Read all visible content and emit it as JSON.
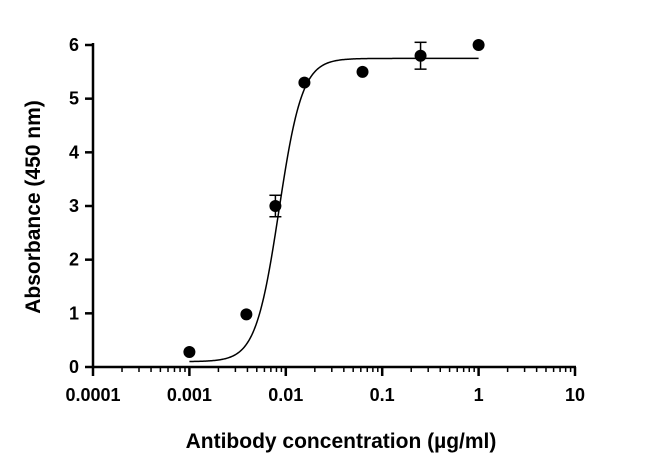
{
  "chart_data": {
    "type": "scatter",
    "title": "",
    "xlabel": "Antibody concentration (µg/ml)",
    "ylabel": "Absorbance (450 nm)",
    "x_scale": "log",
    "xlim": [
      0.0001,
      10
    ],
    "ylim": [
      0,
      6
    ],
    "x_ticks": [
      0.0001,
      0.001,
      0.01,
      0.1,
      1,
      10
    ],
    "x_tick_labels": [
      "0.0001",
      "0.001",
      "0.01",
      "0.1",
      "1",
      "10"
    ],
    "y_ticks": [
      0,
      1,
      2,
      3,
      4,
      5,
      6
    ],
    "y_tick_labels": [
      "0",
      "1",
      "2",
      "3",
      "4",
      "5",
      "6"
    ],
    "grid": false,
    "legend": "none",
    "series": [
      {
        "points": [
          {
            "x": 0.001,
            "y": 0.28
          },
          {
            "x": 0.0039,
            "y": 0.98
          },
          {
            "x": 0.0078,
            "y": 3.0,
            "err": 0.2
          },
          {
            "x": 0.0156,
            "y": 5.3
          },
          {
            "x": 0.0625,
            "y": 5.5
          },
          {
            "x": 0.25,
            "y": 5.8,
            "err": 0.25
          },
          {
            "x": 1,
            "y": 6.0
          }
        ]
      }
    ],
    "fit": {
      "model": "4PL",
      "bottom": 0.1,
      "top": 5.75,
      "ec50": 0.0085,
      "hill": 3.6,
      "x_range": [
        0.001,
        1
      ]
    },
    "colors": {
      "marker": "#000000",
      "line": "#000000",
      "axis": "#000000"
    }
  }
}
